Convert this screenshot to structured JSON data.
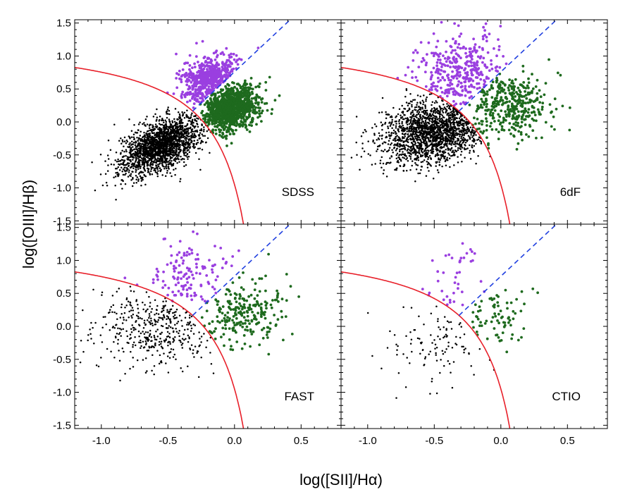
{
  "chart_data": {
    "type": "scatter",
    "xlabel": "log([SII]/Hα)",
    "ylabel": "log([OIII]/Hβ)",
    "xlim": [
      -1.2,
      0.8
    ],
    "ylim": [
      -1.55,
      1.55
    ],
    "xticks": [
      "-1.0",
      "-0.5",
      "0.0",
      "0.5"
    ],
    "xtick_values": [
      -1.0,
      -0.5,
      0.0,
      0.5
    ],
    "yticks": [
      "-1.5",
      "-1.0",
      "-0.5",
      "0.0",
      "0.5",
      "1.0",
      "1.5"
    ],
    "ytick_values": [
      -1.5,
      -1.0,
      -0.5,
      0.0,
      0.5,
      1.0,
      1.5
    ],
    "colors": {
      "star_forming": "#000000",
      "seyfert": "#9a3fe0",
      "liner": "#1e6a1e",
      "max_starburst_curve": "#e8202a",
      "seyfert_liner_line": "#2040e0"
    },
    "curves": {
      "max_starburst": "log([OIII]/Hβ) = 0.72 / (log([SII]/Hα) − 0.32) + 1.30",
      "seyfert_liner": "log([OIII]/Hβ) = 1.89 log([SII]/Hα) + 0.76"
    },
    "panels": [
      {
        "label": "SDSS",
        "groups": {
          "star_forming": {
            "count": 2000,
            "mean": [
              -0.55,
              -0.35
            ],
            "sd": [
              0.15,
              0.22
            ],
            "corr": 0.55
          },
          "seyfert": {
            "count": 550,
            "mean": [
              -0.17,
              0.65
            ],
            "sd": [
              0.11,
              0.18
            ],
            "corr": 0.2
          },
          "liner": {
            "count": 1100,
            "mean": [
              -0.03,
              0.2
            ],
            "sd": [
              0.1,
              0.17
            ],
            "corr": 0.3
          }
        }
      },
      {
        "label": "6dF",
        "groups": {
          "star_forming": {
            "count": 1800,
            "mean": [
              -0.5,
              -0.15
            ],
            "sd": [
              0.2,
              0.25
            ],
            "corr": 0.3
          },
          "seyfert": {
            "count": 350,
            "mean": [
              -0.3,
              0.75
            ],
            "sd": [
              0.16,
              0.3
            ],
            "corr": 0.1
          },
          "liner": {
            "count": 380,
            "mean": [
              0.05,
              0.25
            ],
            "sd": [
              0.16,
              0.25
            ],
            "corr": 0.1
          }
        }
      },
      {
        "label": "FAST",
        "groups": {
          "star_forming": {
            "count": 420,
            "mean": [
              -0.55,
              0.0
            ],
            "sd": [
              0.26,
              0.3
            ],
            "corr": 0.15
          },
          "seyfert": {
            "count": 130,
            "mean": [
              -0.33,
              0.75
            ],
            "sd": [
              0.17,
              0.3
            ],
            "corr": 0.1
          },
          "liner": {
            "count": 230,
            "mean": [
              0.05,
              0.18
            ],
            "sd": [
              0.15,
              0.25
            ],
            "corr": 0.1
          }
        }
      },
      {
        "label": "CTIO",
        "groups": {
          "star_forming": {
            "count": 110,
            "mean": [
              -0.45,
              -0.2
            ],
            "sd": [
              0.22,
              0.35
            ],
            "corr": 0.1
          },
          "seyfert": {
            "count": 40,
            "mean": [
              -0.35,
              0.7
            ],
            "sd": [
              0.15,
              0.3
            ],
            "corr": 0.1
          },
          "liner": {
            "count": 75,
            "mean": [
              0.0,
              0.15
            ],
            "sd": [
              0.14,
              0.25
            ],
            "corr": 0.1
          }
        }
      }
    ]
  }
}
